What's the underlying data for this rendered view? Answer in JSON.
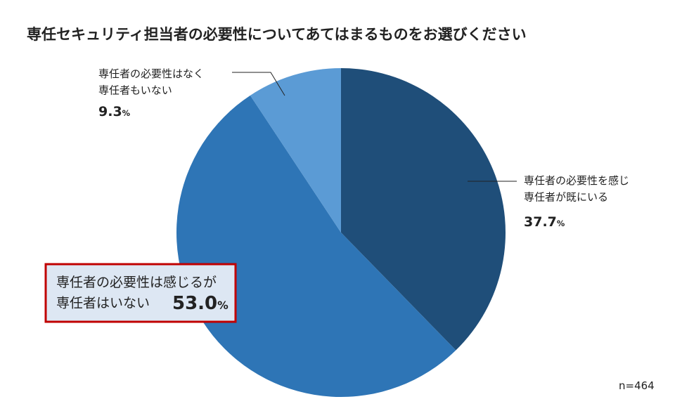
{
  "chart_data": {
    "type": "pie",
    "title": "専任セキュリティ担当者の必要性についてあてはまるものをお選びください",
    "categories": [
      "専任者の必要性を感じ\n専任者が既にいる",
      "専任者の必要性は感じるが\n専任者はいない",
      "専任者の必要性はなく\n専任者もいない"
    ],
    "values": [
      37.7,
      53.0,
      9.3
    ],
    "value_labels": [
      "37.7%",
      "53.0%",
      "9.3%"
    ],
    "colors": [
      "#1f4e79",
      "#2e75b6",
      "#5b9bd5"
    ],
    "highlight": 1,
    "note": "n=464"
  }
}
